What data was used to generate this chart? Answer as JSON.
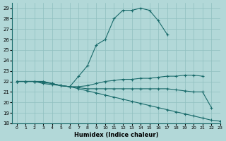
{
  "xlabel": "Humidex (Indice chaleur)",
  "background_color": "#b2d8d8",
  "grid_color": "#8fbfbf",
  "line_color": "#1a6b6b",
  "xlim": [
    -0.5,
    23
  ],
  "ylim": [
    18,
    29.5
  ],
  "xticks": [
    0,
    1,
    2,
    3,
    4,
    5,
    6,
    7,
    8,
    9,
    10,
    11,
    12,
    13,
    14,
    15,
    16,
    17,
    18,
    19,
    20,
    21,
    22,
    23
  ],
  "yticks": [
    18,
    19,
    20,
    21,
    22,
    23,
    24,
    25,
    26,
    27,
    28,
    29
  ],
  "series": [
    {
      "x": [
        0,
        1,
        2,
        3,
        4,
        5,
        6,
        7,
        8,
        9,
        10,
        11,
        12,
        13,
        14,
        15,
        16,
        17
      ],
      "y": [
        22,
        22,
        22,
        22,
        21.8,
        21.6,
        21.5,
        22.5,
        23.5,
        25.5,
        26.0,
        28.0,
        28.8,
        28.8,
        29.0,
        28.8,
        27.8,
        26.5
      ]
    },
    {
      "x": [
        0,
        1,
        2,
        3,
        4,
        5,
        6,
        7,
        8,
        9,
        10,
        11,
        12,
        13,
        14,
        15,
        16,
        17,
        18,
        19,
        20,
        21
      ],
      "y": [
        22,
        22,
        22,
        22,
        21.8,
        21.6,
        21.5,
        21.5,
        21.6,
        21.8,
        22.0,
        22.1,
        22.2,
        22.2,
        22.3,
        22.3,
        22.4,
        22.5,
        22.5,
        22.6,
        22.6,
        22.5
      ]
    },
    {
      "x": [
        0,
        1,
        2,
        3,
        4,
        5,
        6,
        7,
        8,
        9,
        10,
        11,
        12,
        13,
        14,
        15,
        16,
        17,
        18,
        19,
        20,
        21,
        22
      ],
      "y": [
        22,
        22,
        22,
        21.8,
        21.7,
        21.6,
        21.5,
        21.4,
        21.3,
        21.3,
        21.3,
        21.3,
        21.3,
        21.3,
        21.3,
        21.3,
        21.3,
        21.3,
        21.2,
        21.1,
        21.0,
        21.0,
        19.5
      ]
    },
    {
      "x": [
        0,
        1,
        2,
        3,
        4,
        5,
        6,
        7,
        8,
        9,
        10,
        11,
        12,
        13,
        14,
        15,
        16,
        17,
        18,
        19,
        20,
        21,
        22,
        23
      ],
      "y": [
        22,
        22,
        22,
        21.9,
        21.8,
        21.6,
        21.5,
        21.3,
        21.1,
        20.9,
        20.7,
        20.5,
        20.3,
        20.1,
        19.9,
        19.7,
        19.5,
        19.3,
        19.1,
        18.9,
        18.7,
        18.5,
        18.3,
        18.2
      ]
    }
  ]
}
